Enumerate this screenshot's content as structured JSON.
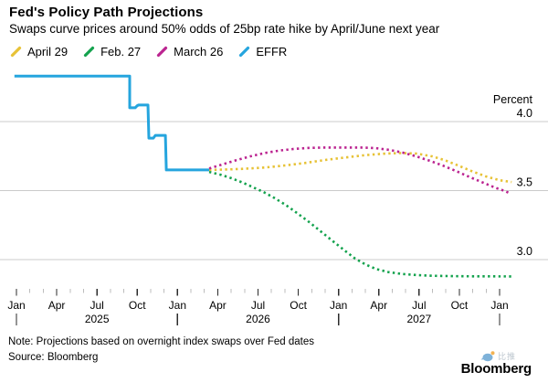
{
  "header": {
    "title": "Fed's Policy Path Projections",
    "subtitle": "Swaps curve prices around 50% odds of 25bp rate hike by April/June next year"
  },
  "legend": [
    {
      "label": "April 29",
      "color": "#E7C236"
    },
    {
      "label": "Feb. 27",
      "color": "#13A24D"
    },
    {
      "label": "March 26",
      "color": "#BB2490"
    },
    {
      "label": "EFFR",
      "color": "#25A5DE"
    }
  ],
  "chart_data": {
    "type": "line",
    "title": "Fed's Policy Path Projections",
    "subtitle": "Swaps curve prices around 50% odds of 25bp rate hike by April/June next year",
    "ylabel": "Percent",
    "y_ticks": [
      4.0,
      3.5,
      3.0
    ],
    "ylim": [
      2.72,
      4.45
    ],
    "x_unit": "months since Jan 2025",
    "x_quarter_labels": [
      "Jan",
      "Apr",
      "Jul",
      "Oct"
    ],
    "num_months": 36,
    "years": [
      "2025",
      "2026",
      "2027"
    ],
    "grid": "horizontal-only",
    "legend_position": "top-left",
    "colors": {
      "gridline": "#cbcbcb",
      "major_tick": "#2b2b2b",
      "minor_tick": "#bcbcbc"
    },
    "series": [
      {
        "name": "EFFR",
        "color": "#25A5DE",
        "style": "solid",
        "points": [
          [
            -0.15,
            4.33
          ],
          [
            8.44,
            4.33
          ],
          [
            8.44,
            4.1
          ],
          [
            8.85,
            4.1
          ],
          [
            9.0,
            4.115
          ],
          [
            9.1,
            4.12
          ],
          [
            9.8,
            4.12
          ],
          [
            9.87,
            3.88
          ],
          [
            10.2,
            3.88
          ],
          [
            10.35,
            3.9
          ],
          [
            11.1,
            3.9
          ],
          [
            11.17,
            3.65
          ],
          [
            14.36,
            3.65
          ]
        ]
      },
      {
        "name": "April 29",
        "color": "#E7C236",
        "style": "dotted",
        "points": [
          [
            14.36,
            3.65
          ],
          [
            15.5,
            3.652
          ],
          [
            17,
            3.658
          ],
          [
            18.5,
            3.667
          ],
          [
            20,
            3.682
          ],
          [
            21.5,
            3.7
          ],
          [
            23,
            3.722
          ],
          [
            24.5,
            3.74
          ],
          [
            26,
            3.757
          ],
          [
            27.5,
            3.768
          ],
          [
            28.7,
            3.772
          ],
          [
            29.8,
            3.768
          ],
          [
            31,
            3.748
          ],
          [
            32,
            3.717
          ],
          [
            33,
            3.678
          ],
          [
            34,
            3.638
          ],
          [
            35,
            3.602
          ],
          [
            36,
            3.575
          ],
          [
            36.9,
            3.562
          ]
        ]
      },
      {
        "name": "March 26",
        "color": "#BB2490",
        "style": "dotted",
        "points": [
          [
            14.36,
            3.66
          ],
          [
            15.3,
            3.688
          ],
          [
            16.3,
            3.718
          ],
          [
            17.4,
            3.748
          ],
          [
            18.5,
            3.772
          ],
          [
            19.6,
            3.79
          ],
          [
            20.7,
            3.802
          ],
          [
            21.8,
            3.809
          ],
          [
            23,
            3.812
          ],
          [
            24.5,
            3.812
          ],
          [
            25.8,
            3.812
          ],
          [
            26.8,
            3.807
          ],
          [
            27.8,
            3.795
          ],
          [
            28.8,
            3.775
          ],
          [
            29.8,
            3.748
          ],
          [
            30.8,
            3.716
          ],
          [
            31.8,
            3.68
          ],
          [
            32.8,
            3.64
          ],
          [
            33.8,
            3.597
          ],
          [
            34.8,
            3.556
          ],
          [
            35.7,
            3.52
          ],
          [
            36.4,
            3.497
          ],
          [
            36.8,
            3.478
          ]
        ]
      },
      {
        "name": "Feb. 27",
        "color": "#13A24D",
        "style": "dotted",
        "points": [
          [
            14.36,
            3.635
          ],
          [
            15.2,
            3.615
          ],
          [
            16,
            3.59
          ],
          [
            16.8,
            3.56
          ],
          [
            17.6,
            3.525
          ],
          [
            18.4,
            3.49
          ],
          [
            19.2,
            3.448
          ],
          [
            20,
            3.4
          ],
          [
            20.8,
            3.345
          ],
          [
            21.7,
            3.28
          ],
          [
            22.6,
            3.21
          ],
          [
            23.5,
            3.14
          ],
          [
            24.4,
            3.07
          ],
          [
            25.2,
            3.01
          ],
          [
            26,
            2.965
          ],
          [
            26.8,
            2.932
          ],
          [
            27.7,
            2.91
          ],
          [
            28.7,
            2.896
          ],
          [
            29.8,
            2.888
          ],
          [
            31,
            2.883
          ],
          [
            32.5,
            2.88
          ],
          [
            34,
            2.879
          ],
          [
            36.9,
            2.878
          ]
        ]
      }
    ]
  },
  "footer": {
    "note": "Note: Projections based on overnight index swaps over Fed dates",
    "source": "Source: Bloomberg",
    "brand": "Bloomberg",
    "watermark_text": "比推"
  }
}
